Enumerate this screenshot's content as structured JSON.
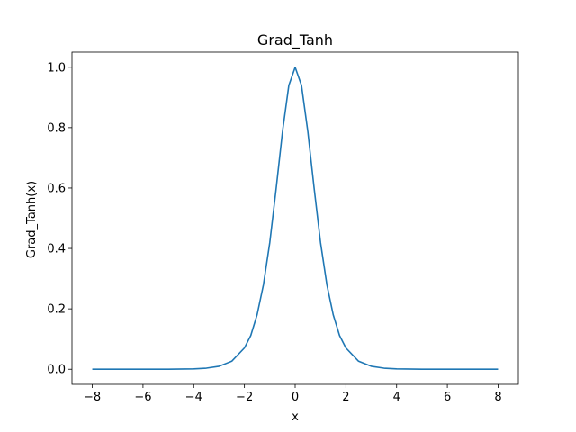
{
  "chart_data": {
    "type": "line",
    "title": "Grad_Tanh",
    "xlabel": "x",
    "ylabel": "Grad_Tanh(x)",
    "xlim": [
      -8.8,
      8.8
    ],
    "ylim": [
      -0.05,
      1.05
    ],
    "grid": false,
    "x_ticks": [
      -8,
      -6,
      -4,
      -2,
      0,
      2,
      4,
      6,
      8
    ],
    "x_tick_labels": [
      "−8",
      "−6",
      "−4",
      "−2",
      "0",
      "2",
      "4",
      "6",
      "8"
    ],
    "y_ticks": [
      0.0,
      0.2,
      0.4,
      0.6,
      0.8,
      1.0
    ],
    "y_tick_labels": [
      "0.0",
      "0.2",
      "0.4",
      "0.6",
      "0.8",
      "1.0"
    ],
    "line_color": "#1f77b4",
    "series": [
      {
        "x": [
          -8,
          -7,
          -6,
          -5,
          -4,
          -3.5,
          -3,
          -2.5,
          -2,
          -1.75,
          -1.5,
          -1.25,
          -1,
          -0.75,
          -0.5,
          -0.25,
          0,
          0.25,
          0.5,
          0.75,
          1,
          1.25,
          1.5,
          1.75,
          2,
          2.5,
          3,
          3.5,
          4,
          5,
          6,
          7,
          8
        ],
        "values": [
          0.0,
          0.0,
          0.0,
          0.0002,
          0.0013,
          0.0036,
          0.0099,
          0.0266,
          0.0707,
          0.1116,
          0.1807,
          0.2802,
          0.42,
          0.5979,
          0.7864,
          0.9397,
          1.0,
          0.9397,
          0.7864,
          0.5979,
          0.42,
          0.2802,
          0.1807,
          0.1116,
          0.0707,
          0.0266,
          0.0099,
          0.0036,
          0.0013,
          0.0002,
          0.0,
          0.0,
          0.0
        ]
      }
    ]
  }
}
